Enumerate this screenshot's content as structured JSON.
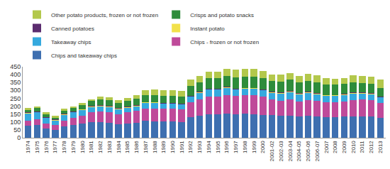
{
  "chart_data": {
    "type": "bar",
    "stacked": true,
    "grid": false,
    "legend": "top-left",
    "categories": [
      "1974",
      "1975",
      "1976",
      "1977",
      "1978",
      "1979",
      "1980",
      "1981",
      "1982",
      "1983",
      "1984",
      "1985",
      "1986",
      "1987",
      "1988",
      "1989",
      "1990",
      "1991",
      "1992",
      "1993",
      "1994",
      "1995",
      "1996",
      "1997",
      "1998",
      "1999",
      "2000",
      "2001-02",
      "2002-03",
      "2003-04",
      "2004-05",
      "2005-06",
      "2006-07",
      "2007",
      "2008",
      "2009",
      "2010",
      "2011",
      "2012",
      "2013"
    ],
    "ylim": [
      0,
      450
    ],
    "yticks": [
      0,
      50,
      100,
      150,
      200,
      250,
      300,
      350,
      400,
      450
    ],
    "series": [
      {
        "name": "Chips and takeaway chips",
        "color": "#3e6fb0",
        "values": [
          75,
          80,
          60,
          50,
          70,
          80,
          90,
          100,
          100,
          95,
          85,
          90,
          95,
          110,
          105,
          105,
          105,
          100,
          130,
          140,
          150,
          150,
          155,
          150,
          155,
          150,
          145,
          145,
          140,
          140,
          135,
          140,
          135,
          130,
          130,
          135,
          135,
          135,
          135,
          125
        ]
      },
      {
        "name": "Chips - frozen or not frozen",
        "color": "#bf4a9a",
        "values": [
          35,
          35,
          30,
          30,
          40,
          45,
          50,
          60,
          65,
          65,
          65,
          70,
          75,
          75,
          80,
          80,
          80,
          80,
          95,
          105,
          110,
          110,
          115,
          115,
          115,
          120,
          115,
          100,
          95,
          105,
          95,
          100,
          100,
          95,
          95,
          95,
          105,
          110,
          105,
          95
        ]
      },
      {
        "name": "Takeaway chips",
        "color": "#35a9de",
        "values": [
          45,
          45,
          35,
          30,
          35,
          35,
          35,
          35,
          35,
          35,
          30,
          30,
          30,
          35,
          35,
          30,
          30,
          30,
          35,
          40,
          45,
          45,
          45,
          40,
          40,
          40,
          40,
          40,
          45,
          45,
          45,
          45,
          40,
          40,
          40,
          40,
          40,
          35,
          35,
          35
        ]
      },
      {
        "name": "Instant potato",
        "color": "#f2e14a",
        "values": [
          3,
          3,
          3,
          3,
          3,
          3,
          3,
          3,
          3,
          3,
          3,
          3,
          3,
          3,
          3,
          3,
          3,
          3,
          3,
          3,
          3,
          3,
          3,
          3,
          3,
          3,
          3,
          3,
          3,
          3,
          3,
          3,
          3,
          3,
          3,
          3,
          3,
          3,
          3,
          3
        ]
      },
      {
        "name": "Canned potatoes",
        "color": "#5b2c6f",
        "values": [
          4,
          4,
          4,
          4,
          4,
          4,
          4,
          4,
          4,
          4,
          4,
          4,
          4,
          4,
          4,
          4,
          4,
          4,
          4,
          4,
          4,
          4,
          4,
          4,
          4,
          4,
          4,
          4,
          4,
          4,
          4,
          4,
          4,
          4,
          4,
          4,
          4,
          4,
          4,
          4
        ]
      },
      {
        "name": "Crisps and potato snacks",
        "color": "#2e8c3b",
        "values": [
          15,
          20,
          15,
          10,
          20,
          20,
          25,
          30,
          35,
          35,
          35,
          35,
          40,
          45,
          45,
          45,
          45,
          45,
          60,
          60,
          65,
          65,
          70,
          70,
          70,
          70,
          70,
          70,
          70,
          70,
          70,
          70,
          70,
          65,
          65,
          65,
          65,
          60,
          60,
          55
        ]
      },
      {
        "name": "Other potato products, frozen or not frozen",
        "color": "#b3c84c",
        "values": [
          13,
          10,
          13,
          13,
          13,
          10,
          13,
          13,
          20,
          20,
          18,
          20,
          25,
          30,
          33,
          33,
          33,
          33,
          40,
          40,
          43,
          43,
          45,
          48,
          48,
          48,
          48,
          40,
          43,
          43,
          38,
          43,
          43,
          43,
          38,
          38,
          43,
          43,
          43,
          50
        ]
      }
    ]
  }
}
